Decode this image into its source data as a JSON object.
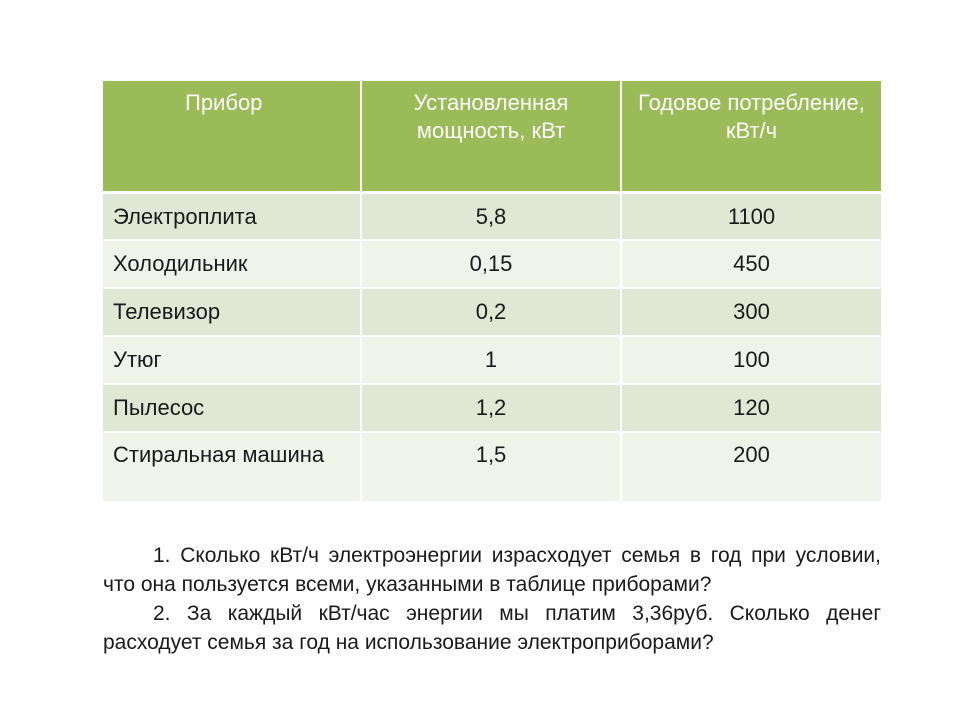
{
  "table": {
    "headers": [
      "Прибор",
      "Установленная мощность, кВт",
      "Годовое потребление, кВт/ч"
    ],
    "rows": [
      [
        "Электроплита",
        "5,8",
        "1100"
      ],
      [
        "Холодильник",
        "0,15",
        "450"
      ],
      [
        "Телевизор",
        "0,2",
        "300"
      ],
      [
        "Утюг",
        "1",
        "100"
      ],
      [
        "Пылесос",
        "1,2",
        "120"
      ],
      [
        "Стиральная машина",
        "1,5",
        "200"
      ]
    ]
  },
  "questions": [
    "1. Сколько кВт/ч электроэнергии израсходует семья в год при условии, что  она пользуется всеми, указанными в таблице приборами?",
    "2. За каждый кВт/час энергии мы платим 3,36руб. Сколько денег расходует семья за год на использование электроприборами?"
  ],
  "colors": {
    "header_bg": "#9bbb59",
    "row_odd_bg": "#e1e7d5",
    "row_even_bg": "#eff3ea"
  }
}
